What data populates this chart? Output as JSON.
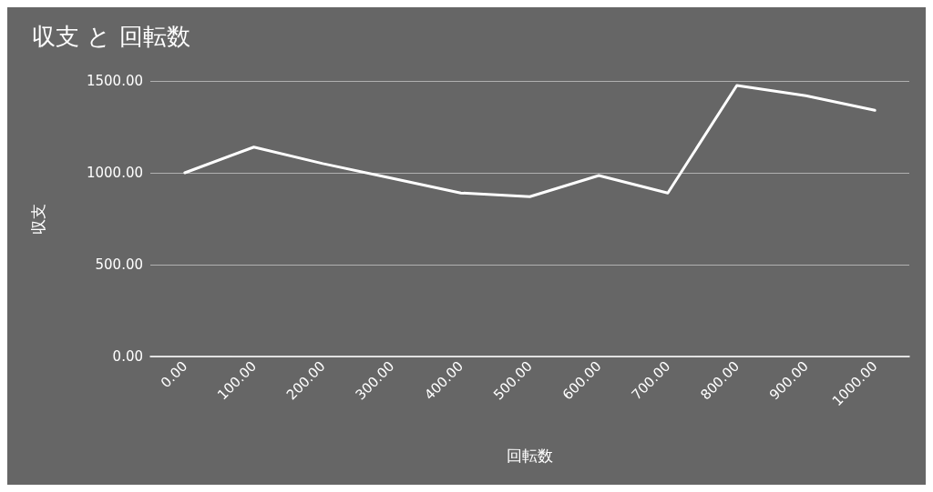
{
  "chart_data": {
    "type": "line",
    "title": "収支 と 回転数",
    "xlabel": "回転数",
    "ylabel": "収支",
    "categories": [
      "0.00",
      "100.00",
      "200.00",
      "300.00",
      "400.00",
      "500.00",
      "600.00",
      "700.00",
      "800.00",
      "900.00",
      "1000.00"
    ],
    "series": [
      {
        "color": "#ffffff",
        "values": [
          1000,
          1140,
          1050,
          970,
          890,
          870,
          985,
          890,
          1475,
          1420,
          1340
        ]
      }
    ],
    "ylim": [
      0,
      1500
    ],
    "yticks": [
      {
        "value": 0,
        "label": "0.00"
      },
      {
        "value": 500,
        "label": "500.00"
      },
      {
        "value": 1000,
        "label": "1000.00"
      },
      {
        "value": 1500,
        "label": "1500.00"
      }
    ],
    "grid": "y",
    "marker": "none",
    "line_style": "solid"
  }
}
